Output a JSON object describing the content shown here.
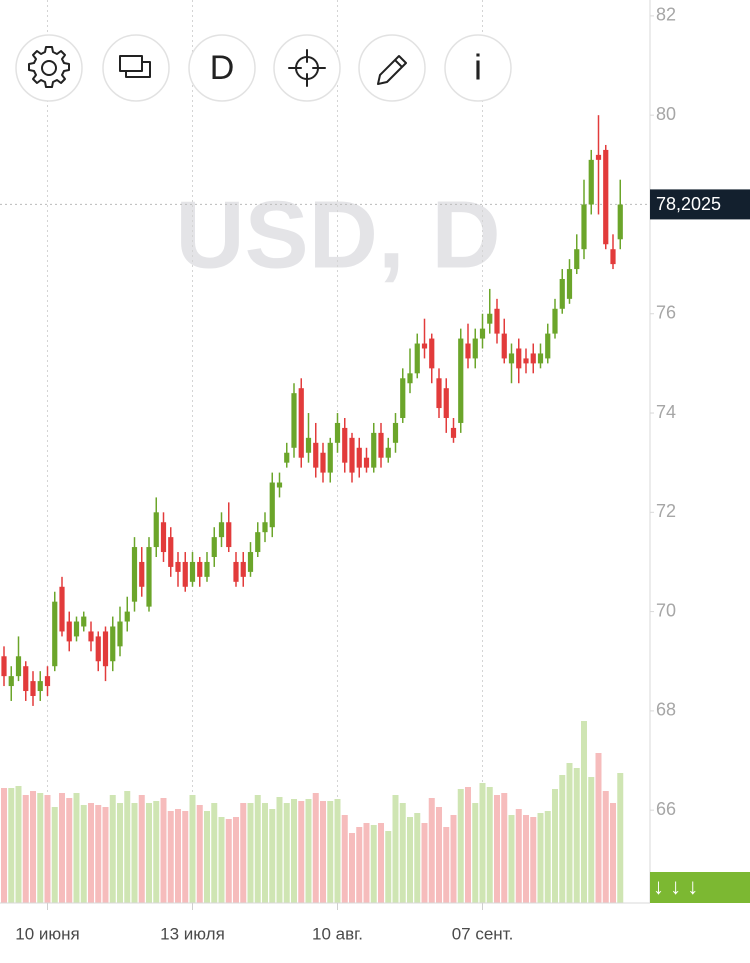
{
  "chart_data": {
    "type": "candlestick",
    "watermark": "USD, D",
    "buttons": [
      "D",
      "i"
    ],
    "scroll_button": "↓ ↓ ↓",
    "last_price": {
      "value": 78.2025,
      "label": "78,2025"
    },
    "ylim": [
      64.13,
      82.32
    ],
    "yticks": [
      66,
      68,
      70,
      72,
      74,
      76,
      78,
      80,
      82
    ],
    "up_color": "#6ba52a",
    "down_color": "#e23b3b",
    "volume_up_color": "#cfe5b3",
    "volume_down_color": "#f6bcbc",
    "categories": [
      null,
      null,
      null,
      null,
      null,
      null,
      "10 июня",
      null,
      null,
      null,
      null,
      null,
      null,
      null,
      null,
      null,
      null,
      null,
      null,
      null,
      null,
      null,
      null,
      null,
      null,
      null,
      "13 июля",
      null,
      null,
      null,
      null,
      null,
      null,
      null,
      null,
      null,
      null,
      null,
      null,
      null,
      null,
      null,
      null,
      null,
      null,
      null,
      "10 авг.",
      null,
      null,
      null,
      null,
      null,
      null,
      null,
      null,
      null,
      null,
      null,
      null,
      null,
      null,
      null,
      null,
      null,
      null,
      null,
      "07 сент.",
      null,
      null,
      null,
      null,
      null,
      null,
      null,
      null,
      null,
      null,
      null,
      null,
      null,
      null,
      null,
      null,
      null,
      null,
      null
    ],
    "open": [
      69.1,
      68.5,
      68.7,
      68.9,
      68.6,
      68.4,
      68.7,
      68.9,
      70.5,
      69.8,
      69.5,
      69.7,
      69.6,
      69.5,
      69.6,
      69.0,
      69.3,
      69.8,
      70.2,
      71.0,
      70.1,
      71.3,
      71.8,
      71.5,
      71.0,
      71.0,
      70.6,
      71.0,
      70.7,
      71.1,
      71.5,
      71.8,
      71.0,
      71.0,
      70.8,
      71.2,
      71.6,
      71.7,
      72.5,
      73.0,
      73.3,
      74.5,
      73.2,
      73.4,
      73.2,
      72.8,
      73.4,
      73.7,
      73.5,
      73.3,
      73.1,
      72.9,
      73.6,
      73.1,
      73.4,
      73.9,
      74.6,
      74.8,
      75.4,
      75.5,
      74.7,
      74.5,
      73.7,
      73.8,
      75.4,
      75.1,
      75.5,
      75.8,
      76.1,
      75.6,
      75.0,
      75.3,
      75.1,
      75.2,
      75.0,
      75.1,
      75.6,
      76.1,
      76.3,
      76.9,
      77.3,
      78.2,
      79.2,
      79.3,
      77.3,
      77.5
    ],
    "high": [
      69.3,
      68.9,
      69.5,
      69.0,
      68.8,
      68.8,
      68.9,
      70.4,
      70.7,
      70.0,
      69.9,
      70.0,
      69.8,
      69.6,
      69.7,
      69.9,
      70.1,
      70.3,
      71.5,
      71.3,
      71.5,
      72.3,
      72.0,
      71.7,
      71.2,
      71.2,
      71.2,
      71.1,
      71.2,
      71.7,
      72.0,
      72.2,
      71.2,
      71.2,
      71.4,
      71.8,
      72.0,
      72.8,
      72.8,
      73.4,
      74.6,
      74.7,
      74.0,
      73.8,
      73.4,
      73.5,
      74.0,
      73.9,
      73.6,
      73.5,
      73.3,
      73.8,
      73.8,
      73.5,
      74.0,
      74.9,
      75.3,
      75.6,
      75.9,
      75.6,
      74.9,
      74.7,
      73.9,
      75.7,
      75.8,
      75.7,
      76.0,
      76.5,
      76.3,
      75.9,
      75.4,
      75.5,
      75.3,
      75.4,
      75.4,
      75.8,
      76.3,
      76.9,
      77.1,
      77.6,
      78.7,
      79.3,
      80.0,
      79.4,
      77.6,
      78.7
    ],
    "low": [
      68.5,
      68.2,
      68.6,
      68.2,
      68.1,
      68.2,
      68.3,
      68.8,
      69.5,
      69.2,
      69.4,
      69.6,
      69.2,
      68.8,
      68.6,
      68.8,
      69.1,
      69.6,
      70.0,
      70.3,
      70.0,
      71.1,
      71.0,
      70.7,
      70.5,
      70.4,
      70.5,
      70.5,
      70.6,
      70.9,
      71.3,
      71.2,
      70.5,
      70.5,
      70.7,
      71.1,
      71.4,
      71.5,
      72.3,
      72.9,
      73.1,
      72.9,
      73.0,
      72.7,
      72.6,
      72.6,
      73.2,
      72.8,
      72.6,
      72.7,
      72.8,
      72.8,
      72.9,
      73.0,
      73.2,
      73.8,
      74.4,
      74.7,
      75.1,
      74.6,
      73.9,
      73.6,
      73.4,
      73.6,
      74.9,
      74.9,
      75.3,
      75.6,
      75.4,
      75.0,
      74.6,
      74.6,
      74.8,
      74.8,
      74.9,
      75.0,
      75.5,
      76.0,
      76.2,
      76.8,
      77.1,
      78.0,
      78.0,
      77.3,
      76.9,
      77.3
    ],
    "close": [
      68.7,
      68.7,
      69.1,
      68.4,
      68.3,
      68.6,
      68.5,
      70.2,
      69.6,
      69.4,
      69.8,
      69.9,
      69.4,
      69.0,
      68.9,
      69.7,
      69.8,
      70.0,
      71.3,
      70.5,
      71.3,
      72.0,
      71.2,
      70.9,
      70.8,
      70.5,
      71.0,
      70.7,
      71.0,
      71.5,
      71.8,
      71.3,
      70.6,
      70.7,
      71.2,
      71.6,
      71.8,
      72.6,
      72.6,
      73.2,
      74.4,
      73.1,
      73.5,
      72.9,
      72.8,
      73.4,
      73.8,
      73.0,
      72.8,
      72.9,
      72.9,
      73.6,
      73.1,
      73.3,
      73.8,
      74.7,
      74.8,
      75.4,
      75.3,
      74.9,
      74.1,
      73.9,
      73.5,
      75.5,
      75.1,
      75.5,
      75.7,
      76.0,
      75.6,
      75.1,
      75.2,
      74.9,
      75.0,
      75.0,
      75.2,
      75.6,
      76.1,
      76.7,
      76.9,
      77.3,
      78.2,
      79.1,
      79.1,
      77.4,
      77.0,
      78.2
    ],
    "volume": [
      115,
      115,
      117,
      108,
      112,
      110,
      108,
      96,
      110,
      105,
      110,
      98,
      100,
      98,
      96,
      108,
      100,
      112,
      100,
      108,
      100,
      102,
      105,
      92,
      94,
      92,
      108,
      98,
      92,
      100,
      86,
      84,
      86,
      100,
      100,
      108,
      100,
      94,
      106,
      100,
      104,
      102,
      104,
      110,
      102,
      102,
      104,
      88,
      70,
      76,
      80,
      78,
      80,
      72,
      108,
      100,
      86,
      90,
      80,
      105,
      96,
      76,
      88,
      114,
      116,
      100,
      120,
      116,
      108,
      110,
      88,
      94,
      88,
      86,
      90,
      92,
      114,
      128,
      140,
      135,
      182,
      126,
      150,
      112,
      100,
      130
    ]
  }
}
